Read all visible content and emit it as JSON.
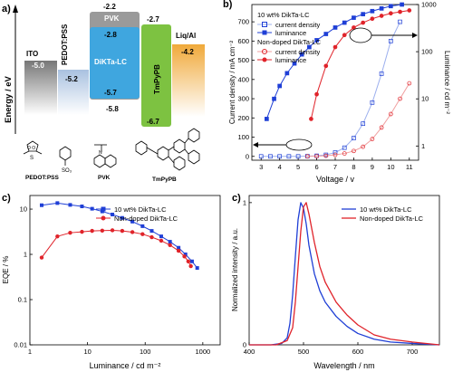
{
  "panel_a": {
    "panel_label": "a)",
    "ylabel": "Energy / eV",
    "layers": [
      {
        "name": "ITO",
        "top": "-5.0",
        "bottom": "",
        "color": "#8c8c8c"
      },
      {
        "name": "PEDOT:PSS",
        "top": "",
        "bottom": "-5.2",
        "color": "#bcd0e6"
      },
      {
        "name": "PVK",
        "top": "-2.2",
        "bottom": "-5.8",
        "color": "#9a9a9a"
      },
      {
        "name": "DiKTa-LC",
        "top": "-2.8",
        "bottom": "-5.7",
        "color": "#3fa6df"
      },
      {
        "name": "TmPyPB",
        "top": "-2.7",
        "bottom": "-6.7",
        "color": "#7dc241"
      },
      {
        "name": "Liq/Al",
        "top": "-4.2",
        "bottom": "",
        "color": "#f2b53a"
      }
    ],
    "structures": [
      "PEDOT:PSS",
      "PVK",
      "TmPyPB"
    ]
  },
  "panel_b": {
    "panel_label": "b)",
    "legend_title_1": "10 wt% DikTa-LC",
    "legend_title_2": "Non-doped DikTa-LC",
    "legend_items": [
      "current density",
      "luminance",
      "current density",
      "luminance"
    ]
  },
  "panel_c1": {
    "panel_label": "c)"
  },
  "panel_c2": {
    "panel_label": "c)"
  },
  "colors": {
    "blue": "#1f3fd6",
    "red": "#e0232a",
    "lightred": "#f0a0a0",
    "lightblue": "#9db0ee"
  },
  "chart_data": [
    {
      "type": "line",
      "xlabel": "Voltage / v",
      "ylabel": "Current density / mA cm⁻²",
      "y2label": "Luminance / cd m⁻²",
      "xlim": [
        2.5,
        11.5
      ],
      "ylim": [
        -20,
        790
      ],
      "y2lim": [
        0.5,
        1000
      ],
      "y2scale": "log",
      "xticks": [
        3,
        4,
        5,
        6,
        7,
        8,
        9,
        10,
        11
      ],
      "yticks": [
        0,
        100,
        200,
        300,
        400,
        500,
        600,
        700
      ],
      "y2ticks": [
        1,
        10,
        100,
        1000
      ],
      "series": [
        {
          "name": "current density",
          "group": "10 wt% DikTa-LC",
          "axis": "left",
          "x": [
            3.0,
            3.5,
            4.0,
            4.5,
            5.0,
            5.5,
            6.0,
            6.5,
            7.0,
            7.5,
            8.0,
            8.5,
            9.0,
            9.5,
            10.0,
            10.5
          ],
          "y": [
            0,
            0,
            0,
            0,
            0,
            1,
            3,
            8,
            20,
            45,
            95,
            170,
            280,
            430,
            600,
            700
          ]
        },
        {
          "name": "luminance",
          "group": "10 wt% DikTa-LC",
          "axis": "right",
          "x": [
            3.3,
            3.7,
            4.0,
            4.4,
            4.8,
            5.2,
            5.6,
            6.0,
            6.5,
            7.0,
            7.5,
            8.0,
            8.5,
            9.0,
            9.5,
            10.0,
            10.6
          ],
          "y": [
            3,
            8,
            15,
            28,
            45,
            70,
            100,
            140,
            190,
            260,
            330,
            420,
            500,
            580,
            660,
            740,
            800
          ]
        },
        {
          "name": "current density",
          "group": "Non-doped DikTa-LC",
          "axis": "left",
          "x": [
            5.5,
            6.0,
            6.5,
            7.0,
            7.5,
            8.0,
            8.5,
            9.0,
            9.5,
            10.0,
            10.5,
            11.0
          ],
          "y": [
            0,
            1,
            3,
            8,
            15,
            28,
            50,
            90,
            150,
            220,
            300,
            380
          ]
        },
        {
          "name": "luminance",
          "group": "Non-doped DikTa-LC",
          "axis": "right",
          "x": [
            5.7,
            6.0,
            6.5,
            7.0,
            7.5,
            8.0,
            8.5,
            9.0,
            9.5,
            10.0,
            10.5,
            11.0
          ],
          "y": [
            3,
            10,
            40,
            100,
            180,
            260,
            330,
            400,
            460,
            520,
            560,
            600
          ]
        }
      ]
    },
    {
      "type": "line",
      "xlabel": "Luminance / cd m⁻²",
      "ylabel": "EQE / %",
      "xscale": "log",
      "yscale": "log",
      "xlim": [
        1,
        2000
      ],
      "ylim": [
        0.01,
        20
      ],
      "xticks": [
        1,
        10,
        100,
        1000
      ],
      "yticks": [
        0.01,
        0.1,
        1,
        10
      ],
      "series": [
        {
          "name": "10 wt% DikTa-LC",
          "x": [
            1.6,
            3,
            5,
            8,
            12,
            18,
            27,
            40,
            60,
            90,
            130,
            190,
            270,
            380,
            500,
            650,
            800
          ],
          "y": [
            12.2,
            13.6,
            12.4,
            11.5,
            10.2,
            8.9,
            7.6,
            6.4,
            5.3,
            4.2,
            3.3,
            2.5,
            1.9,
            1.4,
            1.0,
            0.7,
            0.5
          ]
        },
        {
          "name": "Non-doped DikTa-LC",
          "x": [
            1.6,
            3,
            5,
            8,
            12,
            18,
            27,
            40,
            60,
            90,
            130,
            190,
            270,
            380,
            480,
            560,
            620
          ],
          "y": [
            0.85,
            2.5,
            3.0,
            3.15,
            3.3,
            3.35,
            3.4,
            3.3,
            3.1,
            2.8,
            2.4,
            2.0,
            1.6,
            1.2,
            0.9,
            0.7,
            0.55
          ]
        }
      ]
    },
    {
      "type": "line",
      "xlabel": "Wavelength / nm",
      "ylabel": "Normalized intensity / a.u.",
      "xlim": [
        400,
        750
      ],
      "ylim": [
        0,
        1.05
      ],
      "xticks": [
        400,
        500,
        600,
        700
      ],
      "yticks": [
        0,
        1
      ],
      "series": [
        {
          "name": "10 wt% DikTa-LC",
          "x": [
            400,
            440,
            460,
            470,
            475,
            480,
            485,
            490,
            495,
            500,
            505,
            510,
            520,
            530,
            540,
            560,
            580,
            600,
            630,
            660,
            700,
            750
          ],
          "y": [
            0,
            0,
            0.01,
            0.05,
            0.15,
            0.35,
            0.62,
            0.88,
            1.0,
            0.96,
            0.85,
            0.7,
            0.5,
            0.38,
            0.3,
            0.2,
            0.13,
            0.08,
            0.04,
            0.02,
            0.01,
            0
          ]
        },
        {
          "name": "Non-doped DikTa-LC",
          "x": [
            400,
            450,
            470,
            480,
            485,
            490,
            495,
            500,
            505,
            510,
            520,
            530,
            540,
            560,
            580,
            600,
            630,
            660,
            700,
            750
          ],
          "y": [
            0,
            0,
            0.03,
            0.12,
            0.3,
            0.55,
            0.8,
            0.97,
            1.0,
            0.92,
            0.72,
            0.55,
            0.44,
            0.3,
            0.21,
            0.14,
            0.07,
            0.04,
            0.02,
            0
          ]
        }
      ]
    }
  ]
}
